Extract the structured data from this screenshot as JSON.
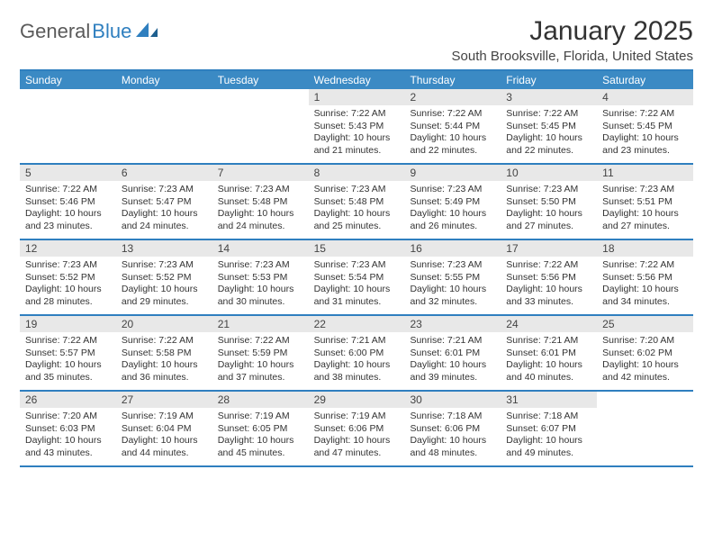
{
  "logo": {
    "word1": "General",
    "word2": "Blue",
    "accent_color": "#2f7fbf",
    "gray_color": "#5a5a5a"
  },
  "title": "January 2025",
  "location": "South Brooksville, Florida, United States",
  "header_bg": "#3b8ac4",
  "border_color": "#2f7fbf",
  "daynum_bg": "#e8e8e8",
  "day_headers": [
    "Sunday",
    "Monday",
    "Tuesday",
    "Wednesday",
    "Thursday",
    "Friday",
    "Saturday"
  ],
  "weeks": [
    [
      {
        "n": "",
        "lines": []
      },
      {
        "n": "",
        "lines": []
      },
      {
        "n": "",
        "lines": []
      },
      {
        "n": "1",
        "lines": [
          "Sunrise: 7:22 AM",
          "Sunset: 5:43 PM",
          "Daylight: 10 hours",
          "and 21 minutes."
        ]
      },
      {
        "n": "2",
        "lines": [
          "Sunrise: 7:22 AM",
          "Sunset: 5:44 PM",
          "Daylight: 10 hours",
          "and 22 minutes."
        ]
      },
      {
        "n": "3",
        "lines": [
          "Sunrise: 7:22 AM",
          "Sunset: 5:45 PM",
          "Daylight: 10 hours",
          "and 22 minutes."
        ]
      },
      {
        "n": "4",
        "lines": [
          "Sunrise: 7:22 AM",
          "Sunset: 5:45 PM",
          "Daylight: 10 hours",
          "and 23 minutes."
        ]
      }
    ],
    [
      {
        "n": "5",
        "lines": [
          "Sunrise: 7:22 AM",
          "Sunset: 5:46 PM",
          "Daylight: 10 hours",
          "and 23 minutes."
        ]
      },
      {
        "n": "6",
        "lines": [
          "Sunrise: 7:23 AM",
          "Sunset: 5:47 PM",
          "Daylight: 10 hours",
          "and 24 minutes."
        ]
      },
      {
        "n": "7",
        "lines": [
          "Sunrise: 7:23 AM",
          "Sunset: 5:48 PM",
          "Daylight: 10 hours",
          "and 24 minutes."
        ]
      },
      {
        "n": "8",
        "lines": [
          "Sunrise: 7:23 AM",
          "Sunset: 5:48 PM",
          "Daylight: 10 hours",
          "and 25 minutes."
        ]
      },
      {
        "n": "9",
        "lines": [
          "Sunrise: 7:23 AM",
          "Sunset: 5:49 PM",
          "Daylight: 10 hours",
          "and 26 minutes."
        ]
      },
      {
        "n": "10",
        "lines": [
          "Sunrise: 7:23 AM",
          "Sunset: 5:50 PM",
          "Daylight: 10 hours",
          "and 27 minutes."
        ]
      },
      {
        "n": "11",
        "lines": [
          "Sunrise: 7:23 AM",
          "Sunset: 5:51 PM",
          "Daylight: 10 hours",
          "and 27 minutes."
        ]
      }
    ],
    [
      {
        "n": "12",
        "lines": [
          "Sunrise: 7:23 AM",
          "Sunset: 5:52 PM",
          "Daylight: 10 hours",
          "and 28 minutes."
        ]
      },
      {
        "n": "13",
        "lines": [
          "Sunrise: 7:23 AM",
          "Sunset: 5:52 PM",
          "Daylight: 10 hours",
          "and 29 minutes."
        ]
      },
      {
        "n": "14",
        "lines": [
          "Sunrise: 7:23 AM",
          "Sunset: 5:53 PM",
          "Daylight: 10 hours",
          "and 30 minutes."
        ]
      },
      {
        "n": "15",
        "lines": [
          "Sunrise: 7:23 AM",
          "Sunset: 5:54 PM",
          "Daylight: 10 hours",
          "and 31 minutes."
        ]
      },
      {
        "n": "16",
        "lines": [
          "Sunrise: 7:23 AM",
          "Sunset: 5:55 PM",
          "Daylight: 10 hours",
          "and 32 minutes."
        ]
      },
      {
        "n": "17",
        "lines": [
          "Sunrise: 7:22 AM",
          "Sunset: 5:56 PM",
          "Daylight: 10 hours",
          "and 33 minutes."
        ]
      },
      {
        "n": "18",
        "lines": [
          "Sunrise: 7:22 AM",
          "Sunset: 5:56 PM",
          "Daylight: 10 hours",
          "and 34 minutes."
        ]
      }
    ],
    [
      {
        "n": "19",
        "lines": [
          "Sunrise: 7:22 AM",
          "Sunset: 5:57 PM",
          "Daylight: 10 hours",
          "and 35 minutes."
        ]
      },
      {
        "n": "20",
        "lines": [
          "Sunrise: 7:22 AM",
          "Sunset: 5:58 PM",
          "Daylight: 10 hours",
          "and 36 minutes."
        ]
      },
      {
        "n": "21",
        "lines": [
          "Sunrise: 7:22 AM",
          "Sunset: 5:59 PM",
          "Daylight: 10 hours",
          "and 37 minutes."
        ]
      },
      {
        "n": "22",
        "lines": [
          "Sunrise: 7:21 AM",
          "Sunset: 6:00 PM",
          "Daylight: 10 hours",
          "and 38 minutes."
        ]
      },
      {
        "n": "23",
        "lines": [
          "Sunrise: 7:21 AM",
          "Sunset: 6:01 PM",
          "Daylight: 10 hours",
          "and 39 minutes."
        ]
      },
      {
        "n": "24",
        "lines": [
          "Sunrise: 7:21 AM",
          "Sunset: 6:01 PM",
          "Daylight: 10 hours",
          "and 40 minutes."
        ]
      },
      {
        "n": "25",
        "lines": [
          "Sunrise: 7:20 AM",
          "Sunset: 6:02 PM",
          "Daylight: 10 hours",
          "and 42 minutes."
        ]
      }
    ],
    [
      {
        "n": "26",
        "lines": [
          "Sunrise: 7:20 AM",
          "Sunset: 6:03 PM",
          "Daylight: 10 hours",
          "and 43 minutes."
        ]
      },
      {
        "n": "27",
        "lines": [
          "Sunrise: 7:19 AM",
          "Sunset: 6:04 PM",
          "Daylight: 10 hours",
          "and 44 minutes."
        ]
      },
      {
        "n": "28",
        "lines": [
          "Sunrise: 7:19 AM",
          "Sunset: 6:05 PM",
          "Daylight: 10 hours",
          "and 45 minutes."
        ]
      },
      {
        "n": "29",
        "lines": [
          "Sunrise: 7:19 AM",
          "Sunset: 6:06 PM",
          "Daylight: 10 hours",
          "and 47 minutes."
        ]
      },
      {
        "n": "30",
        "lines": [
          "Sunrise: 7:18 AM",
          "Sunset: 6:06 PM",
          "Daylight: 10 hours",
          "and 48 minutes."
        ]
      },
      {
        "n": "31",
        "lines": [
          "Sunrise: 7:18 AM",
          "Sunset: 6:07 PM",
          "Daylight: 10 hours",
          "and 49 minutes."
        ]
      },
      {
        "n": "",
        "lines": []
      }
    ]
  ]
}
